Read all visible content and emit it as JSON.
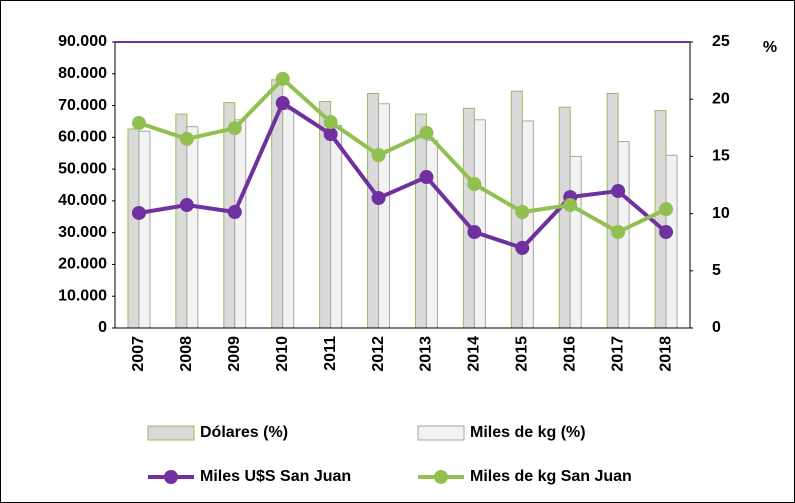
{
  "chart_data": {
    "type": "bar-line",
    "categories": [
      "2007",
      "2008",
      "2009",
      "2010",
      "2011",
      "2012",
      "2013",
      "2014",
      "2015",
      "2016",
      "2017",
      "2018"
    ],
    "series": [
      {
        "name": "Dólares (%)",
        "kind": "bar",
        "axis": "y2",
        "color": "#d9d9d9",
        "border": "#9bbb59",
        "values": [
          17.4,
          18.7,
          19.7,
          21.7,
          19.8,
          20.5,
          18.7,
          19.2,
          20.7,
          19.3,
          20.5,
          19.0
        ]
      },
      {
        "name": "Miles de kg (%)",
        "kind": "bar",
        "axis": "y2",
        "color": "#f2f2f2",
        "border": "#a6a6a6",
        "values": [
          17.2,
          17.6,
          18.2,
          19.1,
          17.7,
          19.6,
          16.4,
          18.2,
          18.1,
          15.0,
          16.3,
          15.1
        ]
      },
      {
        "name": "Miles U$S San Juan",
        "kind": "line",
        "color": "#7030a0",
        "values": [
          36200,
          38700,
          36500,
          70800,
          61000,
          40900,
          47500,
          30200,
          25200,
          41200,
          43100,
          30200
        ]
      },
      {
        "name": "Miles de kg San Juan",
        "kind": "line",
        "color": "#92c050",
        "values": [
          64500,
          59500,
          62900,
          78400,
          64800,
          54400,
          61400,
          45300,
          36500,
          38700,
          30200,
          37400
        ]
      }
    ],
    "ylim": [
      0,
      90000
    ],
    "yticks": [
      0,
      {
        "value": 10000,
        "label": "10.000"
      },
      {
        "value": 20000,
        "label": "20.000"
      },
      {
        "value": 30000,
        "label": "30.000"
      },
      {
        "value": 40000,
        "label": "40.000"
      },
      {
        "value": 50000,
        "label": "50.000"
      },
      {
        "value": 60000,
        "label": "60.000"
      },
      {
        "value": 70000,
        "label": "70.000"
      },
      {
        "value": 80000,
        "label": "80.000"
      },
      {
        "value": 90000,
        "label": "90.000"
      }
    ],
    "y2lim": [
      0,
      25
    ],
    "y2ticks": [
      0,
      5,
      10,
      15,
      20,
      25
    ],
    "y2label": "%"
  }
}
